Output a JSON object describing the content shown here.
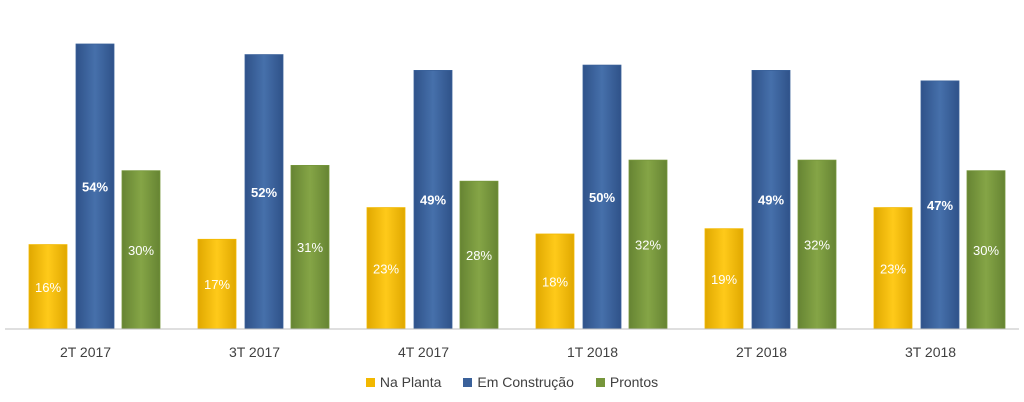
{
  "chart_data": {
    "type": "bar",
    "categories": [
      "2T 2017",
      "3T 2017",
      "4T 2017",
      "1T 2018",
      "2T 2018",
      "3T 2018"
    ],
    "series": [
      {
        "name": "Na Planta",
        "color": "#F2B800",
        "values": [
          16,
          17,
          23,
          18,
          19,
          23
        ],
        "labels": [
          "16%",
          "17%",
          "23%",
          "18%",
          "19%",
          "23%"
        ]
      },
      {
        "name": "Em Construção",
        "color": "#3A619A",
        "values": [
          54,
          52,
          49,
          50,
          49,
          47
        ],
        "labels": [
          "54%",
          "52%",
          "49%",
          "50%",
          "49%",
          "47%"
        ]
      },
      {
        "name": "Prontos",
        "color": "#76963B",
        "values": [
          30,
          31,
          28,
          32,
          32,
          30
        ],
        "labels": [
          "30%",
          "31%",
          "28%",
          "32%",
          "32%",
          "30%"
        ]
      }
    ],
    "ylim": [
      0,
      54
    ],
    "grid": false,
    "legend_position": "bottom"
  }
}
